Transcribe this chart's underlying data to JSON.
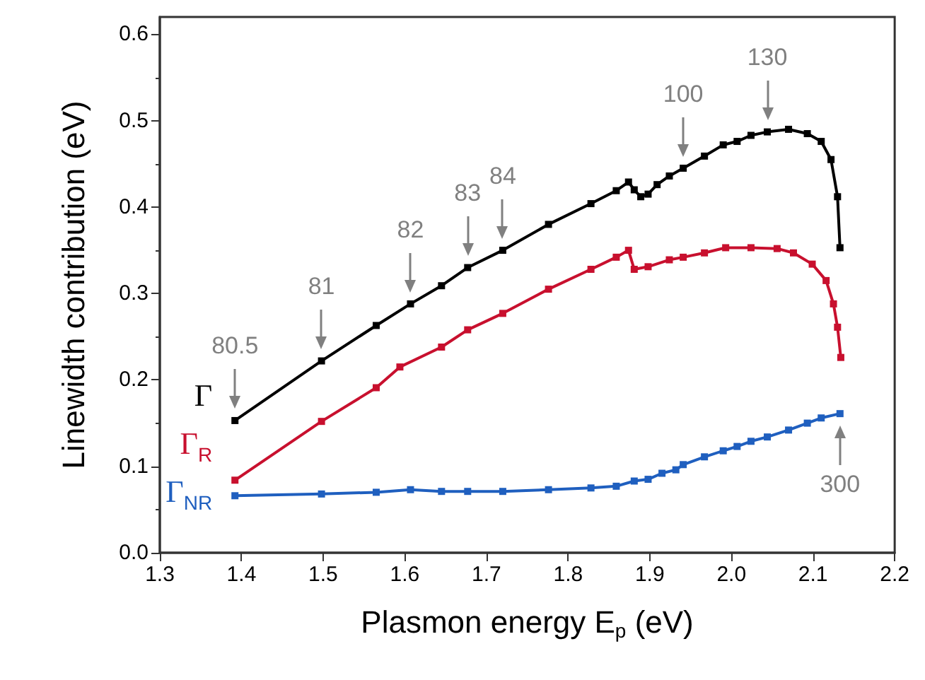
{
  "chart_data": {
    "type": "line",
    "xlabel": "Plasmon energy E$_{p}$ (eV)",
    "ylabel": "Linewidth contribution (eV)",
    "xlim": [
      1.3,
      2.2
    ],
    "xticks": [
      1.3,
      1.4,
      1.5,
      1.6,
      1.7,
      1.8,
      1.9,
      {
        "value": 2,
        "label": "2.0"
      },
      2.1,
      2.2
    ],
    "ylim": [
      0,
      0.62
    ],
    "yticks": [
      {
        "value": 0,
        "label": "0.0"
      },
      0.1,
      0.2,
      0.3,
      0.4,
      0.5,
      0.6
    ],
    "grid": false,
    "marker": "square",
    "line_style": "solid",
    "series": [
      {
        "name": "Γ",
        "color": "#000000",
        "x": [
          1.392,
          1.498,
          1.565,
          1.607,
          1.645,
          1.677,
          1.72,
          1.776,
          1.828,
          1.859,
          1.874,
          1.881,
          1.889,
          1.898,
          1.909,
          1.924,
          1.941,
          1.967,
          1.99,
          2.007,
          2.024,
          2.044,
          2.07,
          2.093,
          2.11,
          2.122,
          2.13,
          2.133
        ],
        "values": [
          0.153,
          0.222,
          0.263,
          0.288,
          0.309,
          0.33,
          0.35,
          0.38,
          0.404,
          0.419,
          0.429,
          0.42,
          0.412,
          0.415,
          0.426,
          0.436,
          0.445,
          0.459,
          0.472,
          0.476,
          0.483,
          0.487,
          0.49,
          0.485,
          0.476,
          0.455,
          0.412,
          0.353
        ]
      },
      {
        "name": "Γ$_{R}$",
        "color": "#c8102e",
        "x": [
          1.392,
          1.498,
          1.565,
          1.594,
          1.645,
          1.677,
          1.72,
          1.776,
          1.828,
          1.859,
          1.874,
          1.881,
          1.898,
          1.924,
          1.941,
          1.967,
          1.993,
          2.024,
          2.056,
          2.076,
          2.099,
          2.116,
          2.125,
          2.13,
          2.134
        ],
        "values": [
          0.084,
          0.152,
          0.191,
          0.215,
          0.238,
          0.258,
          0.277,
          0.305,
          0.328,
          0.342,
          0.35,
          0.328,
          0.331,
          0.339,
          0.342,
          0.347,
          0.353,
          0.353,
          0.352,
          0.347,
          0.334,
          0.315,
          0.288,
          0.261,
          0.226
        ]
      },
      {
        "name": "Γ$_{NR}$",
        "color": "#1f5fbf",
        "x": [
          1.392,
          1.498,
          1.565,
          1.607,
          1.645,
          1.677,
          1.72,
          1.776,
          1.828,
          1.859,
          1.881,
          1.898,
          1.915,
          1.932,
          1.941,
          1.967,
          1.99,
          2.007,
          2.024,
          2.044,
          2.07,
          2.093,
          2.11,
          2.133
        ],
        "values": [
          0.066,
          0.068,
          0.07,
          0.073,
          0.071,
          0.071,
          0.071,
          0.073,
          0.075,
          0.077,
          0.083,
          0.085,
          0.092,
          0.096,
          0.102,
          0.111,
          0.118,
          0.123,
          0.129,
          0.134,
          0.142,
          0.15,
          0.156,
          0.161
        ]
      }
    ],
    "annotations": [
      {
        "text": "80.5",
        "x": 1.392,
        "y": 0.153
      },
      {
        "text": "81",
        "x": 1.498,
        "y": 0.222
      },
      {
        "text": "82",
        "x": 1.607,
        "y": 0.288
      },
      {
        "text": "83",
        "x": 1.677,
        "y": 0.33
      },
      {
        "text": "84",
        "x": 1.72,
        "y": 0.35
      },
      {
        "text": "100",
        "x": 1.941,
        "y": 0.445
      },
      {
        "text": "130",
        "x": 2.044,
        "y": 0.487
      },
      {
        "text": "300",
        "x": 2.133,
        "y": 0.161
      }
    ]
  }
}
